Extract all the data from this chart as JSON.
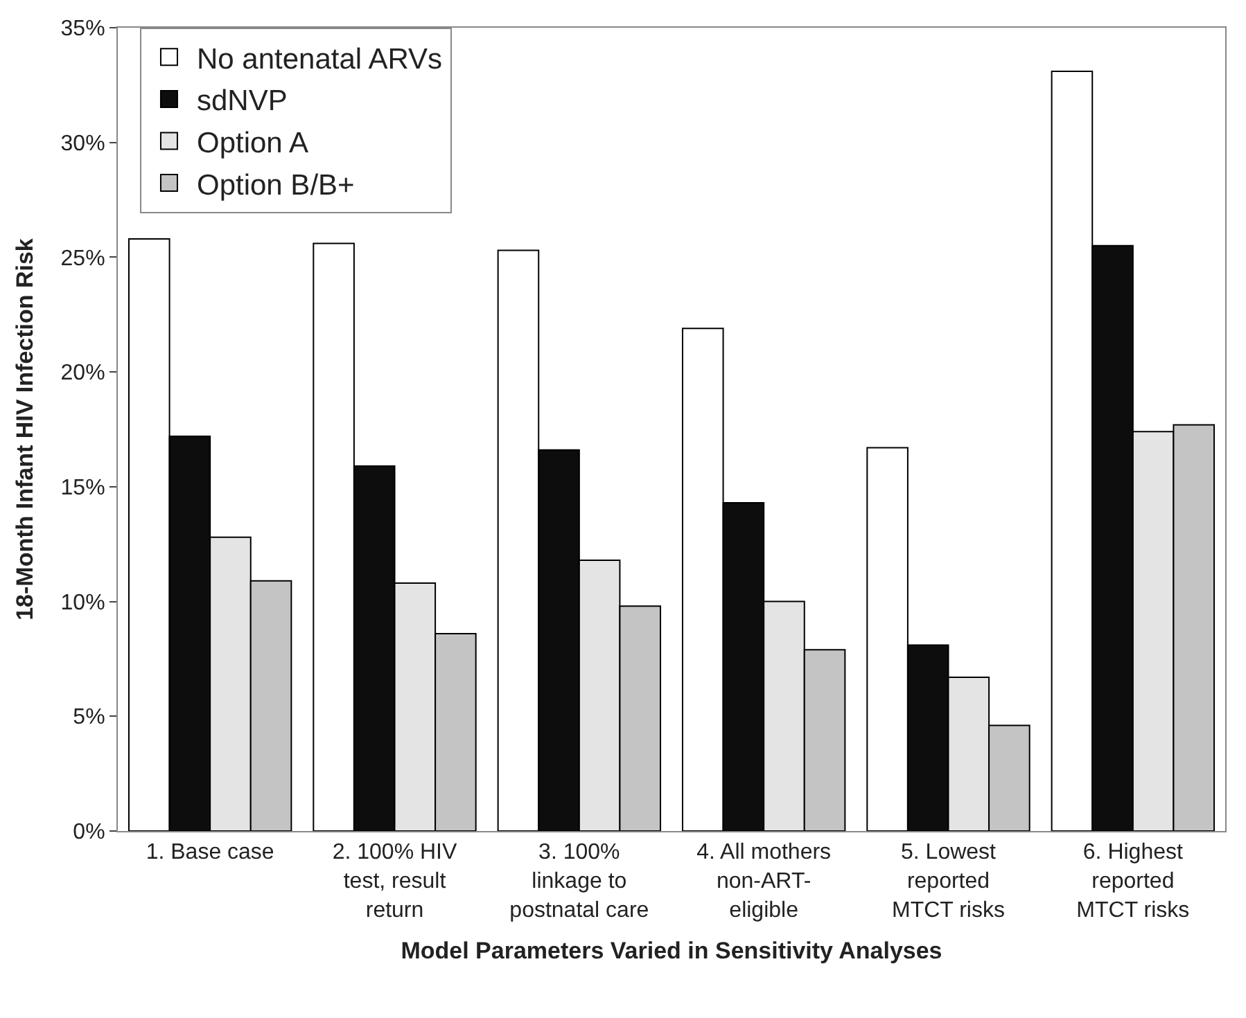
{
  "chart_data": {
    "type": "bar",
    "xlabel": "Model Parameters Varied in Sensitivity Analyses",
    "ylabel": "18-Month Infant HIV Infection Risk",
    "categories": [
      "1. Base case",
      "2. 100% HIV\ntest, result\nreturn",
      "3. 100%\nlinkage to\npostnatal care",
      "4. All mothers\nnon-ART-\neligible",
      "5. Lowest\nreported\nMTCT risks",
      "6. Highest\nreported\nMTCT risks"
    ],
    "series": [
      {
        "name": "No antenatal ARVs",
        "color": "#ffffff",
        "values": [
          25.8,
          25.6,
          25.3,
          21.9,
          16.7,
          33.1
        ]
      },
      {
        "name": "sdNVP",
        "color": "#0d0d0d",
        "values": [
          17.2,
          15.9,
          16.6,
          14.3,
          8.1,
          25.5
        ]
      },
      {
        "name": "Option A",
        "color": "#e4e4e4",
        "values": [
          12.8,
          10.8,
          11.8,
          10.0,
          6.7,
          17.4
        ]
      },
      {
        "name": "Option B/B+",
        "color": "#c4c4c4",
        "values": [
          10.9,
          8.6,
          9.8,
          7.9,
          4.6,
          17.7
        ]
      }
    ],
    "ylim": [
      0,
      35
    ],
    "yticks": [
      {
        "value": 0,
        "label": "0%"
      },
      {
        "value": 5,
        "label": "5%"
      },
      {
        "value": 10,
        "label": "10%"
      },
      {
        "value": 15,
        "label": "15%"
      },
      {
        "value": 20,
        "label": "20%"
      },
      {
        "value": 25,
        "label": "25%"
      },
      {
        "value": 30,
        "label": "30%"
      },
      {
        "value": 35,
        "label": "35%"
      }
    ],
    "grid": false,
    "legend": "top left"
  }
}
